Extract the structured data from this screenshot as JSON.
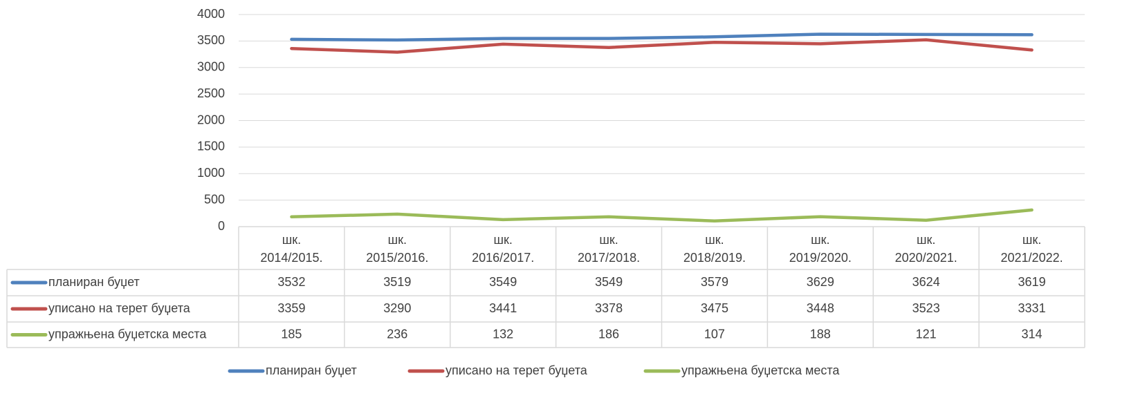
{
  "chart_data": {
    "type": "line",
    "categories": [
      "шк. 2014/2015.",
      "шк. 2015/2016.",
      "шк. 2016/2017.",
      "шк. 2017/2018.",
      "шк. 2018/2019.",
      "шк. 2019/2020.",
      "шк. 2020/2021.",
      "шк. 2021/2022."
    ],
    "series": [
      {
        "name": "планиран буџет",
        "color": "#4f81bd",
        "values": [
          3532,
          3519,
          3549,
          3549,
          3579,
          3629,
          3624,
          3619
        ]
      },
      {
        "name": "уписано на терет буџета",
        "color": "#c0504d",
        "values": [
          3359,
          3290,
          3441,
          3378,
          3475,
          3448,
          3523,
          3331
        ]
      },
      {
        "name": "упражњена буџетска места",
        "color": "#9bbb59",
        "values": [
          185,
          236,
          132,
          186,
          107,
          188,
          121,
          314
        ]
      }
    ],
    "ylim": [
      0,
      4000
    ],
    "yticks": [
      0,
      500,
      1000,
      1500,
      2000,
      2500,
      3000,
      3500,
      4000
    ],
    "grid": true
  }
}
